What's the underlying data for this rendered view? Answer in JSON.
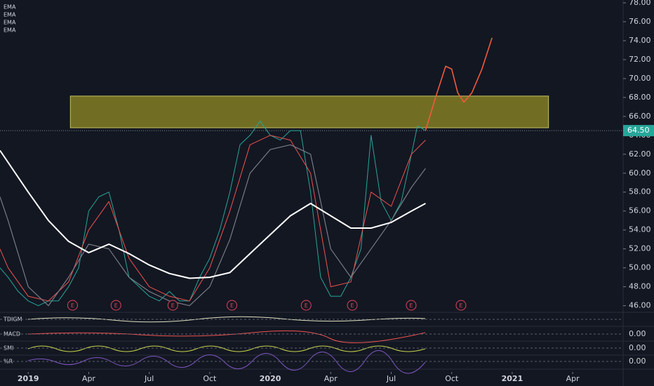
{
  "chart_data": {
    "type": "line",
    "legend": [
      "EMA",
      "EMA",
      "EMA",
      "EMA"
    ],
    "xlim": [
      -1.4,
      29.5
    ],
    "xticks": [
      {
        "value": 0,
        "label": "2019"
      },
      {
        "value": 3,
        "label": "Apr"
      },
      {
        "value": 6,
        "label": "Jul"
      },
      {
        "value": 9,
        "label": "Oct"
      },
      {
        "value": 12,
        "label": "2020"
      },
      {
        "value": 15,
        "label": "Apr"
      },
      {
        "value": 18,
        "label": "Jul"
      },
      {
        "value": 21,
        "label": "Oct"
      },
      {
        "value": 24,
        "label": "2021"
      },
      {
        "value": 27,
        "label": "Apr"
      }
    ],
    "ylim": [
      45.3,
      78.3
    ],
    "yticks": [
      {
        "value": 46,
        "label": "46.00"
      },
      {
        "value": 48,
        "label": "48.00"
      },
      {
        "value": 50,
        "label": "50.00"
      },
      {
        "value": 52,
        "label": "52.00"
      },
      {
        "value": 54,
        "label": "54.00"
      },
      {
        "value": 56,
        "label": "56.00"
      },
      {
        "value": 58,
        "label": "58.00"
      },
      {
        "value": 60,
        "label": "60.00"
      },
      {
        "value": 62,
        "label": "62.00"
      },
      {
        "value": 64,
        "label": "64.00"
      },
      {
        "value": 66,
        "label": "66.00"
      },
      {
        "value": 68,
        "label": "68.00"
      },
      {
        "value": 70,
        "label": "70.00"
      },
      {
        "value": 72,
        "label": "72.00"
      },
      {
        "value": 74,
        "label": "74.00"
      },
      {
        "value": 76,
        "label": "76.00"
      },
      {
        "value": 78,
        "label": "78.00"
      }
    ],
    "last_price": {
      "value": 64.5,
      "label": "64.50",
      "color": "#26a69a"
    },
    "zone": {
      "x": [
        2.09,
        25.8
      ],
      "y": [
        64.8,
        68.15
      ],
      "color": "#8a8425"
    },
    "earnings": {
      "label": "E",
      "x": [
        2.2,
        4.35,
        7.17,
        10.1,
        13.78,
        16.07,
        18.99,
        21.46
      ]
    },
    "series": [
      {
        "color": "#26a69a",
        "width": 1,
        "x": [
          -1.4,
          -1,
          -0.5,
          0,
          0.5,
          1,
          1.5,
          2,
          2.5,
          3,
          3.5,
          4,
          4.5,
          5,
          5.5,
          6,
          6.5,
          7,
          7.5,
          8,
          8.5,
          9,
          9.5,
          10,
          10.5,
          11,
          11.5,
          12,
          12.5,
          13,
          13.5,
          14,
          14.5,
          15,
          15.5,
          16,
          16.5,
          17,
          17.5,
          18,
          18.5,
          19,
          19.3,
          19.7
        ],
        "values": [
          50,
          49,
          47.5,
          46.5,
          46,
          46.5,
          46.5,
          48,
          50,
          56,
          57.5,
          58,
          54,
          49,
          48,
          47,
          46.5,
          47.5,
          46.5,
          46.5,
          49,
          51,
          54,
          58,
          63,
          64,
          65.5,
          64,
          63.5,
          64.5,
          64.5,
          58,
          49,
          47,
          47,
          49,
          52,
          64,
          57,
          55,
          57,
          62,
          65,
          64.5
        ]
      },
      {
        "color": "#ef5350",
        "width": 1,
        "x": [
          -1.4,
          -1,
          0,
          1,
          2,
          3,
          4,
          5,
          6,
          7,
          8,
          9,
          10,
          11,
          12,
          13,
          14,
          15,
          16,
          17,
          18,
          19,
          19.7
        ],
        "values": [
          52,
          50,
          47,
          46.5,
          48.5,
          54,
          57,
          51,
          48,
          47,
          46.5,
          50,
          56,
          63,
          64,
          63.5,
          60,
          48,
          48.5,
          58,
          56.5,
          62,
          63.5
        ]
      },
      {
        "color": "#787b86",
        "width": 1.2,
        "x": [
          -1.4,
          -1,
          0,
          1,
          2,
          3,
          4,
          5,
          6,
          7,
          8,
          9,
          10,
          11,
          12,
          13,
          14,
          15,
          16,
          17,
          18,
          19,
          19.7
        ],
        "values": [
          57.5,
          55,
          48,
          46,
          49,
          52.5,
          52,
          49,
          47.5,
          46.5,
          46,
          48,
          53,
          60,
          62.5,
          63,
          62,
          52,
          49,
          52,
          55,
          58.5,
          60.5
        ]
      },
      {
        "color": "#ffffff",
        "width": 2,
        "x": [
          -1.4,
          0,
          1,
          2,
          3,
          4,
          5,
          6,
          7,
          8,
          9,
          10,
          11,
          12,
          13,
          14,
          15,
          16,
          17,
          18,
          19,
          19.7
        ],
        "values": [
          62.4,
          58,
          55,
          52.8,
          51.6,
          52.5,
          51.5,
          50.3,
          49.4,
          48.9,
          49,
          49.5,
          51.5,
          53.5,
          55.5,
          56.8,
          55.5,
          54.2,
          54.2,
          54.8,
          56,
          56.8
        ]
      },
      {
        "color": "#f05a3c",
        "width": 1.6,
        "x": [
          19.7,
          20.2,
          20.7,
          21,
          21.3,
          21.6,
          22,
          22.5,
          23
        ],
        "values": [
          64.5,
          68,
          71.3,
          71,
          68.5,
          67.5,
          68.5,
          71,
          74.3
        ]
      }
    ],
    "panes": [
      {
        "name": "TDIGM",
        "tick": {
          "value": 0,
          "label": ""
        }
      },
      {
        "name": "MACD",
        "tick": {
          "value": 0,
          "label": "0.00"
        }
      },
      {
        "name": "SMI",
        "tick": {
          "value": 0,
          "label": "0.00"
        }
      },
      {
        "name": "%R",
        "tick": {
          "value": 0,
          "label": "0.00"
        }
      }
    ]
  }
}
